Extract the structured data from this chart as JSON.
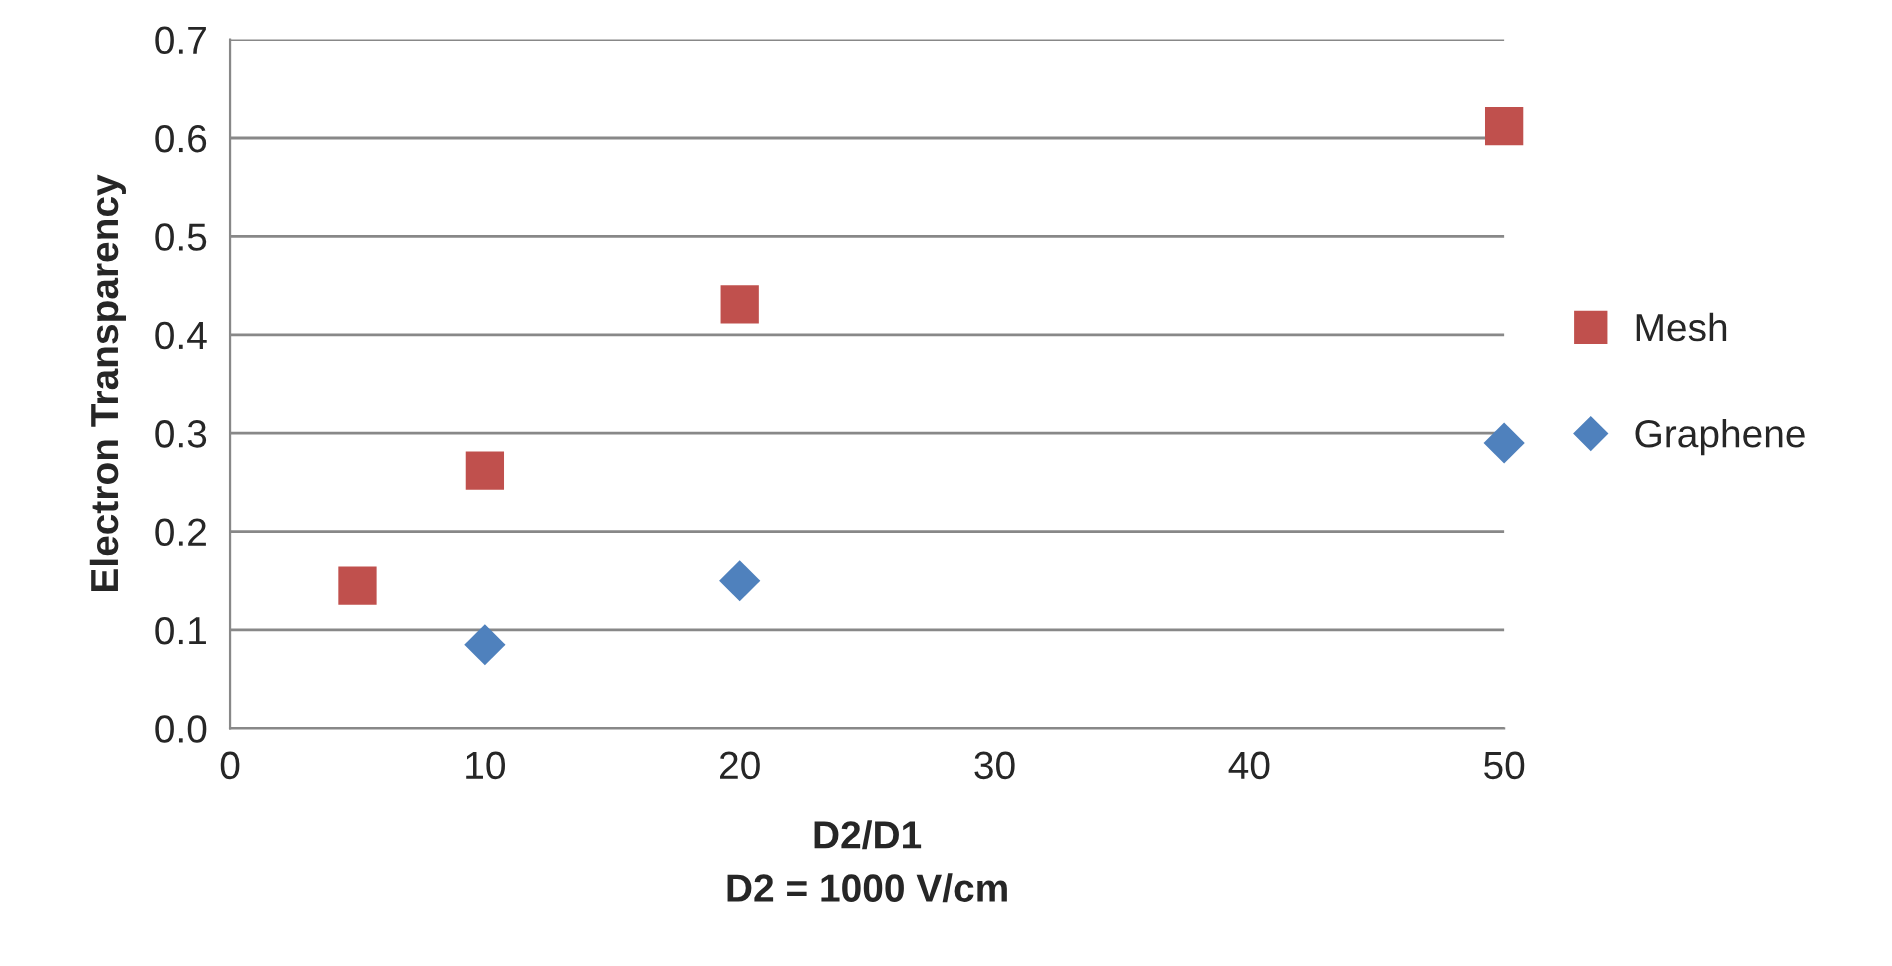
{
  "chart_data": {
    "type": "scatter",
    "xlabel": "D2/D1\nD2 = 1000 V/cm",
    "ylabel": "Electron Transparency",
    "xlim": [
      0,
      50
    ],
    "xticks": [
      0,
      10,
      20,
      30,
      40,
      50
    ],
    "ylim": [
      0,
      0.7
    ],
    "yticks": [
      {
        "value": 0,
        "label": "0.0"
      },
      {
        "value": 0.1,
        "label": "0.1"
      },
      {
        "value": 0.2,
        "label": "0.2"
      },
      {
        "value": 0.3,
        "label": "0.3"
      },
      {
        "value": 0.4,
        "label": "0.4"
      },
      {
        "value": 0.5,
        "label": "0.5"
      },
      {
        "value": 0.6,
        "label": "0.6"
      },
      {
        "value": 0.7,
        "label": "0.7"
      }
    ],
    "grid": "y",
    "legend": "right",
    "series": [
      {
        "name": "Mesh",
        "color": "#c0504d",
        "marker": "square",
        "x": [
          5,
          10,
          20,
          50
        ],
        "values": [
          0.145,
          0.262,
          0.431,
          0.612
        ]
      },
      {
        "name": "Graphene",
        "color": "#4f81bd",
        "marker": "diamond",
        "x": [
          10,
          20,
          50
        ],
        "values": [
          0.085,
          0.15,
          0.29
        ]
      }
    ]
  }
}
